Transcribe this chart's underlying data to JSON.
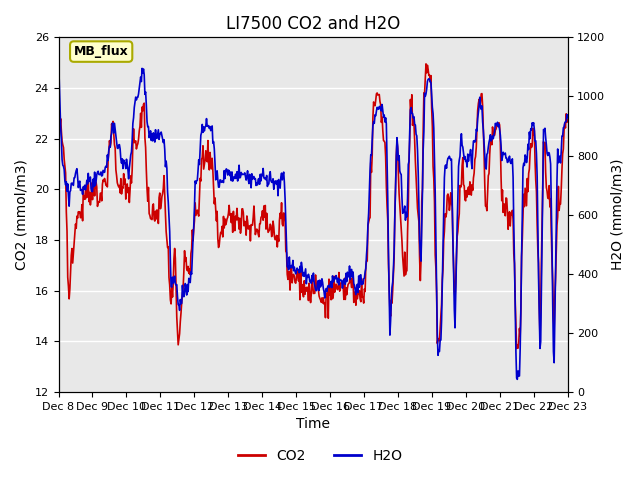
{
  "title": "LI7500 CO2 and H2O",
  "xlabel": "Time",
  "ylabel_left": "CO2 (mmol/m3)",
  "ylabel_right": "H2O (mmol/m3)",
  "ylim_left": [
    12,
    26
  ],
  "ylim_right": [
    0,
    1200
  ],
  "xtick_labels": [
    "Dec 8",
    "Dec 9",
    "Dec 10",
    "Dec 11",
    "Dec 12",
    "Dec 13",
    "Dec 14",
    "Dec 15",
    "Dec 16",
    "Dec 17",
    "Dec 18",
    "Dec 19",
    "Dec 20",
    "Dec 21",
    "Dec 22",
    "Dec 23"
  ],
  "co2_color": "#cc0000",
  "h2o_color": "#0000cc",
  "legend_co2": "CO2",
  "legend_h2o": "H2O",
  "annotation_text": "MB_flux",
  "annotation_bbox_facecolor": "#ffffcc",
  "annotation_bbox_edgecolor": "#aaaa00",
  "background_color": "#ffffff",
  "plot_bg_color": "#e8e8e8",
  "grid_color": "#ffffff",
  "title_fontsize": 12,
  "axis_fontsize": 10,
  "tick_fontsize": 8,
  "legend_fontsize": 10,
  "line_width": 1.2
}
